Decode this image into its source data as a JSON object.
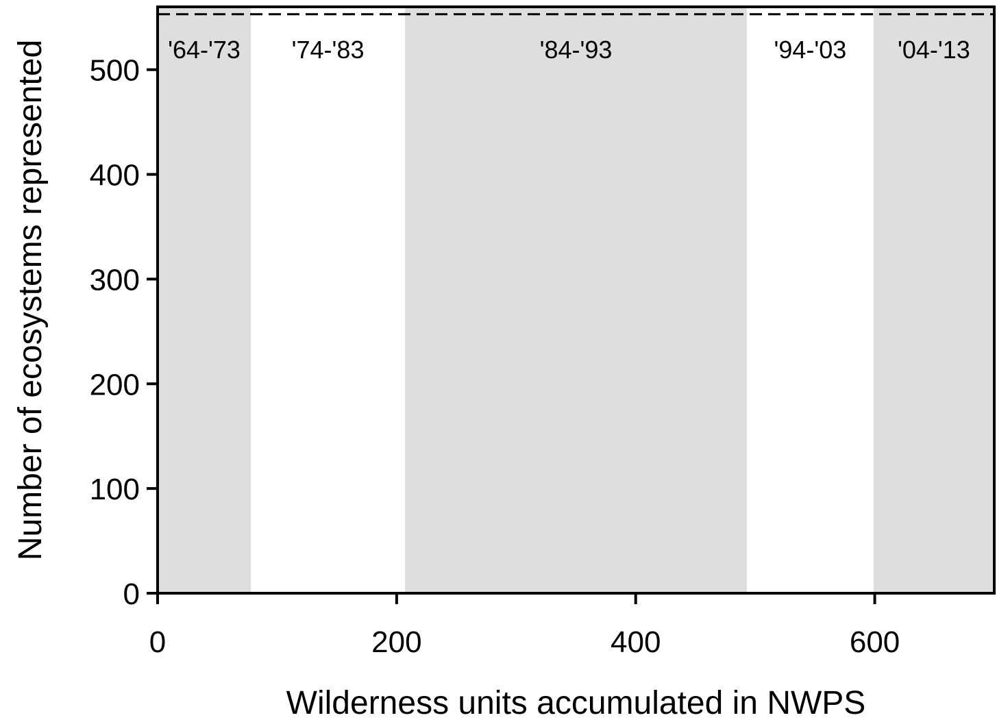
{
  "chart_data": {
    "type": "area",
    "xlabel": "Wilderness units accumulated in NWPS",
    "ylabel": "Number of ecosystems represented",
    "xlim": [
      0,
      700
    ],
    "ylim": [
      0,
      560
    ],
    "xticks": [
      0,
      200,
      400,
      600
    ],
    "yticks": [
      0,
      100,
      200,
      300,
      400,
      500
    ],
    "grid": false,
    "periods": [
      {
        "label": "'64-'73",
        "start": 0,
        "end": 78,
        "shaded": true
      },
      {
        "label": "'74-'83",
        "start": 78,
        "end": 207,
        "shaded": false
      },
      {
        "label": "'84-'93",
        "start": 207,
        "end": 493,
        "shaded": true
      },
      {
        "label": "'94-'03",
        "start": 493,
        "end": 599,
        "shaded": false
      },
      {
        "label": "'04-'13",
        "start": 599,
        "end": 700,
        "shaded": true
      }
    ],
    "reference_line": {
      "y": 553,
      "style": "dashed"
    },
    "colors": {
      "shade": "#dedede",
      "axis": "#000000",
      "reference": "#000000"
    }
  }
}
